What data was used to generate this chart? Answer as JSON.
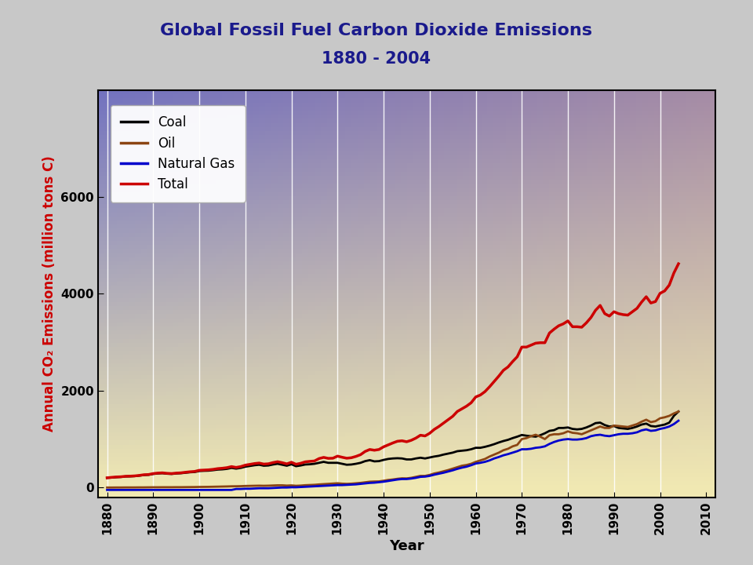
{
  "title_line1": "Global Fossil Fuel Carbon Dioxide Emissions",
  "title_line2": "1880 - 2004",
  "xlabel": "Year",
  "ylabel": "Annual CO₂ Emissions (million tons C)",
  "ylabel_color": "#cc0000",
  "title_color": "#1a1a8c",
  "background_outer": "#c8c8c8",
  "xlim": [
    1878,
    2012
  ],
  "ylim": [
    -200,
    8200
  ],
  "yticks": [
    0,
    2000,
    4000,
    6000
  ],
  "xticks": [
    1880,
    1890,
    1900,
    1910,
    1920,
    1930,
    1940,
    1950,
    1960,
    1970,
    1980,
    1990,
    2000,
    2010
  ],
  "coal_color": "#000000",
  "oil_color": "#8B4513",
  "gas_color": "#0000cc",
  "total_color": "#cc0000",
  "legend_labels": [
    "Coal",
    "Oil",
    "Natural Gas",
    "Total"
  ],
  "years": [
    1880,
    1881,
    1882,
    1883,
    1884,
    1885,
    1886,
    1887,
    1888,
    1889,
    1890,
    1891,
    1892,
    1893,
    1894,
    1895,
    1896,
    1897,
    1898,
    1899,
    1900,
    1901,
    1902,
    1903,
    1904,
    1905,
    1906,
    1907,
    1908,
    1909,
    1910,
    1911,
    1912,
    1913,
    1914,
    1915,
    1916,
    1917,
    1918,
    1919,
    1920,
    1921,
    1922,
    1923,
    1924,
    1925,
    1926,
    1927,
    1928,
    1929,
    1930,
    1931,
    1932,
    1933,
    1934,
    1935,
    1936,
    1937,
    1938,
    1939,
    1940,
    1941,
    1942,
    1943,
    1944,
    1945,
    1946,
    1947,
    1948,
    1949,
    1950,
    1951,
    1952,
    1953,
    1954,
    1955,
    1956,
    1957,
    1958,
    1959,
    1960,
    1961,
    1962,
    1963,
    1964,
    1965,
    1966,
    1967,
    1968,
    1969,
    1970,
    1971,
    1972,
    1973,
    1974,
    1975,
    1976,
    1977,
    1978,
    1979,
    1980,
    1981,
    1982,
    1983,
    1984,
    1985,
    1986,
    1987,
    1988,
    1989,
    1990,
    1991,
    1992,
    1993,
    1994,
    1995,
    1996,
    1997,
    1998,
    1999,
    2000,
    2001,
    2002,
    2003,
    2004
  ],
  "coal": [
    200,
    205,
    213,
    218,
    228,
    230,
    235,
    245,
    258,
    262,
    280,
    290,
    295,
    285,
    280,
    290,
    295,
    305,
    315,
    320,
    340,
    345,
    348,
    358,
    370,
    375,
    385,
    405,
    390,
    405,
    430,
    445,
    460,
    470,
    450,
    455,
    475,
    490,
    470,
    450,
    480,
    440,
    455,
    475,
    480,
    490,
    510,
    530,
    510,
    510,
    510,
    490,
    470,
    475,
    490,
    510,
    545,
    565,
    540,
    545,
    570,
    590,
    600,
    605,
    600,
    580,
    580,
    600,
    615,
    600,
    620,
    640,
    655,
    680,
    700,
    720,
    750,
    760,
    770,
    790,
    820,
    820,
    840,
    865,
    895,
    930,
    960,
    985,
    1020,
    1050,
    1085,
    1070,
    1060,
    1050,
    1080,
    1120,
    1170,
    1185,
    1230,
    1230,
    1240,
    1210,
    1200,
    1210,
    1240,
    1280,
    1330,
    1340,
    1290,
    1260,
    1270,
    1230,
    1220,
    1210,
    1230,
    1260,
    1300,
    1320,
    1270,
    1260,
    1280,
    1300,
    1340,
    1480,
    1570
  ],
  "oil": [
    0,
    0,
    1,
    1,
    2,
    2,
    2,
    3,
    3,
    4,
    5,
    5,
    6,
    6,
    6,
    7,
    7,
    8,
    9,
    10,
    12,
    13,
    14,
    16,
    18,
    20,
    22,
    25,
    26,
    28,
    32,
    34,
    36,
    38,
    36,
    38,
    42,
    46,
    46,
    40,
    44,
    36,
    40,
    48,
    52,
    56,
    64,
    70,
    76,
    82,
    88,
    80,
    76,
    80,
    88,
    96,
    108,
    120,
    124,
    126,
    140,
    156,
    166,
    180,
    190,
    188,
    200,
    220,
    240,
    240,
    260,
    290,
    310,
    335,
    360,
    390,
    420,
    450,
    465,
    490,
    530,
    560,
    590,
    640,
    680,
    720,
    770,
    800,
    850,
    880,
    1000,
    1020,
    1060,
    1090,
    1050,
    1000,
    1080,
    1100,
    1100,
    1120,
    1160,
    1130,
    1120,
    1100,
    1140,
    1180,
    1220,
    1260,
    1230,
    1230,
    1280,
    1270,
    1260,
    1250,
    1280,
    1310,
    1360,
    1400,
    1350,
    1370,
    1430,
    1450,
    1480,
    1530,
    1570
  ],
  "gas": [
    -50,
    -50,
    -50,
    -50,
    -50,
    -50,
    -50,
    -50,
    -50,
    -50,
    -50,
    -50,
    -50,
    -50,
    -50,
    -50,
    -50,
    -50,
    -50,
    -50,
    -50,
    -50,
    -50,
    -50,
    -50,
    -50,
    -50,
    -50,
    -30,
    -30,
    -25,
    -25,
    -20,
    -15,
    -15,
    -15,
    -10,
    -5,
    0,
    0,
    5,
    5,
    10,
    15,
    20,
    25,
    30,
    35,
    40,
    45,
    50,
    50,
    55,
    60,
    65,
    75,
    85,
    95,
    100,
    110,
    120,
    135,
    150,
    165,
    175,
    175,
    185,
    200,
    220,
    225,
    240,
    265,
    285,
    305,
    330,
    355,
    385,
    410,
    430,
    460,
    495,
    510,
    530,
    560,
    600,
    630,
    665,
    690,
    720,
    750,
    790,
    790,
    800,
    820,
    830,
    850,
    900,
    940,
    970,
    990,
    1000,
    990,
    990,
    1000,
    1020,
    1060,
    1080,
    1090,
    1070,
    1060,
    1080,
    1100,
    1110,
    1110,
    1120,
    1140,
    1180,
    1200,
    1170,
    1180,
    1210,
    1230,
    1260,
    1310,
    1380
  ],
  "total": [
    200,
    210,
    218,
    222,
    232,
    235,
    240,
    250,
    264,
    268,
    288,
    298,
    303,
    293,
    288,
    298,
    303,
    315,
    325,
    332,
    355,
    360,
    365,
    375,
    390,
    398,
    410,
    432,
    415,
    432,
    462,
    478,
    495,
    505,
    484,
    490,
    515,
    533,
    513,
    488,
    522,
    480,
    500,
    530,
    540,
    548,
    598,
    622,
    602,
    605,
    648,
    625,
    605,
    615,
    642,
    678,
    745,
    785,
    770,
    785,
    840,
    880,
    920,
    955,
    965,
    945,
    975,
    1020,
    1080,
    1065,
    1120,
    1200,
    1260,
    1330,
    1400,
    1470,
    1570,
    1625,
    1680,
    1750,
    1870,
    1910,
    1980,
    2080,
    2190,
    2300,
    2420,
    2490,
    2600,
    2700,
    2900,
    2900,
    2940,
    2980,
    2990,
    2990,
    3190,
    3270,
    3340,
    3380,
    3440,
    3320,
    3320,
    3310,
    3400,
    3510,
    3660,
    3760,
    3590,
    3540,
    3630,
    3590,
    3570,
    3560,
    3630,
    3700,
    3830,
    3940,
    3810,
    3840,
    4010,
    4060,
    4180,
    4430,
    4620
  ]
}
